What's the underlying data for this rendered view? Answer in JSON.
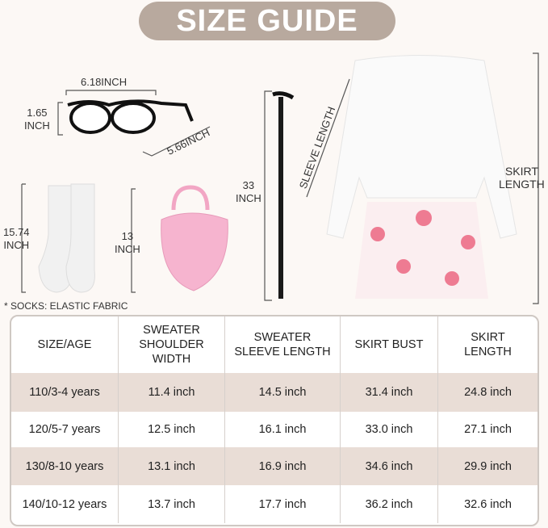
{
  "title": "SIZE GUIDE",
  "glasses": {
    "width": "6.18INCH",
    "height_value": "1.65",
    "height_unit": "INCH",
    "temple": "5.66INCH"
  },
  "socks": {
    "value": "15.74",
    "unit": "INCH",
    "note": "* SOCKS: ELASTIC FABRIC"
  },
  "bag": {
    "value": "13",
    "unit": "INCH"
  },
  "cane": {
    "value": "33",
    "unit": "INCH"
  },
  "dress": {
    "sleeve": "SLEEVE LENGTH",
    "skirt_line1": "SKIRT",
    "skirt_line2": "LENGTH"
  },
  "colors": {
    "title_bg": "#b8a99e",
    "row_shade": "#e9ddd6",
    "background": "#fcf8f5"
  },
  "table": {
    "headers": [
      [
        "SIZE/AGE"
      ],
      [
        "SWEATER",
        "SHOULDER",
        "WIDTH"
      ],
      [
        "SWEATER",
        "SLEEVE LENGTH"
      ],
      [
        "SKIRT BUST"
      ],
      [
        "SKIRT",
        "LENGTH"
      ]
    ],
    "rows": [
      [
        "110/3-4 years",
        "11.4 inch",
        "14.5 inch",
        "31.4 inch",
        "24.8 inch"
      ],
      [
        "120/5-7 years",
        "12.5 inch",
        "16.1 inch",
        "33.0 inch",
        "27.1 inch"
      ],
      [
        "130/8-10 years",
        "13.1 inch",
        "16.9 inch",
        "34.6 inch",
        "29.9 inch"
      ],
      [
        "140/10-12 years",
        "13.7 inch",
        "17.7 inch",
        "36.2 inch",
        "32.6 inch"
      ]
    ]
  }
}
